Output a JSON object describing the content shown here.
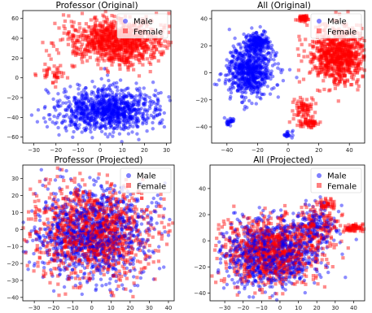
{
  "chart_data": [
    {
      "type": "scatter",
      "title": "Professor (Original)",
      "xlim": [
        -35,
        32
      ],
      "ylim": [
        -66,
        68
      ],
      "xticks": [
        -30,
        -20,
        -10,
        0,
        10,
        20,
        30
      ],
      "yticks": [
        -60,
        -40,
        -20,
        0,
        20,
        40,
        60
      ],
      "grid": false,
      "legend": "top-right",
      "series": [
        {
          "name": "Male",
          "marker": "circle",
          "color": "#0000ff",
          "clusters": [
            {
              "cx": 3,
              "cy": -33,
              "sx": 11.5,
              "sy": 11,
              "n": 1000
            }
          ]
        },
        {
          "name": "Female",
          "marker": "square",
          "color": "#ff0000",
          "clusters": [
            {
              "cx": 8,
              "cy": 37,
              "sx": 10.5,
              "sy": 11,
              "n": 950
            },
            {
              "cx": -22,
              "cy": 3,
              "sx": 3,
              "sy": 4,
              "n": 40
            }
          ]
        }
      ]
    },
    {
      "type": "scatter",
      "title": "All (Original)",
      "xlim": [
        -50,
        50
      ],
      "ylim": [
        -52,
        46
      ],
      "xticks": [
        -40,
        -20,
        0,
        20,
        40
      ],
      "yticks": [
        -40,
        -20,
        0,
        20,
        40
      ],
      "grid": false,
      "legend": "top-right",
      "series": [
        {
          "name": "Male",
          "marker": "circle",
          "color": "#0000ff",
          "clusters": [
            {
              "cx": -25,
              "cy": 2,
              "sx": 8,
              "sy": 9.5,
              "n": 700
            },
            {
              "cx": -20,
              "cy": 22,
              "sx": 4,
              "sy": 4,
              "n": 200
            },
            {
              "cx": -38,
              "cy": -36,
              "sx": 1.5,
              "sy": 1.5,
              "n": 30
            },
            {
              "cx": 0,
              "cy": -46,
              "sx": 1.5,
              "sy": 1.2,
              "n": 20
            }
          ]
        },
        {
          "name": "Female",
          "marker": "square",
          "color": "#ff0000",
          "clusters": [
            {
              "cx": 32,
              "cy": 12,
              "sx": 9,
              "sy": 10,
              "n": 800
            },
            {
              "cx": 10,
              "cy": 40,
              "sx": 1.8,
              "sy": 1.2,
              "n": 50
            },
            {
              "cx": 14,
              "cy": -37,
              "sx": 3.5,
              "sy": 2,
              "n": 60
            },
            {
              "cx": 10,
              "cy": -25,
              "sx": 4,
              "sy": 4,
              "n": 70
            }
          ]
        }
      ]
    },
    {
      "type": "scatter",
      "title": "Professor (Projected)",
      "xlim": [
        -36,
        43
      ],
      "ylim": [
        -42,
        38
      ],
      "xticks": [
        -30,
        -20,
        -10,
        0,
        10,
        20,
        30,
        40
      ],
      "yticks": [
        -40,
        -30,
        -20,
        -10,
        0,
        10,
        20,
        30
      ],
      "grid": false,
      "legend": "top-right",
      "series": [
        {
          "name": "Male",
          "marker": "circle",
          "color": "#0000ff",
          "clusters": [
            {
              "cx": 0,
              "cy": -2,
              "sx": 15,
              "sy": 14,
              "n": 1100
            }
          ]
        },
        {
          "name": "Female",
          "marker": "square",
          "color": "#ff0000",
          "clusters": [
            {
              "cx": 1,
              "cy": -2,
              "sx": 15,
              "sy": 14,
              "n": 1100
            }
          ]
        }
      ]
    },
    {
      "type": "scatter",
      "title": "All (Projected)",
      "xlim": [
        -38,
        46
      ],
      "ylim": [
        -46,
        58
      ],
      "xticks": [
        -30,
        -20,
        -10,
        0,
        10,
        20,
        30,
        40
      ],
      "yticks": [
        -40,
        -20,
        0,
        20,
        40
      ],
      "grid": false,
      "legend": "top-right",
      "series": [
        {
          "name": "Male",
          "marker": "circle",
          "color": "#0000ff",
          "clusters": [
            {
              "cx": -5,
              "cy": -10,
              "sx": 13,
              "sy": 13,
              "n": 900
            },
            {
              "cx": 20,
              "cy": 12,
              "sx": 6,
              "sy": 8,
              "n": 150
            }
          ]
        },
        {
          "name": "Female",
          "marker": "square",
          "color": "#ff0000",
          "clusters": [
            {
              "cx": -4,
              "cy": -8,
              "sx": 13,
              "sy": 13,
              "n": 900
            },
            {
              "cx": 40,
              "cy": 10,
              "sx": 3,
              "sy": 1.5,
              "n": 60
            },
            {
              "cx": 25,
              "cy": 28,
              "sx": 2,
              "sy": 2,
              "n": 40
            },
            {
              "cx": 20,
              "cy": 13,
              "sx": 6,
              "sy": 8,
              "n": 150
            }
          ]
        }
      ]
    }
  ]
}
